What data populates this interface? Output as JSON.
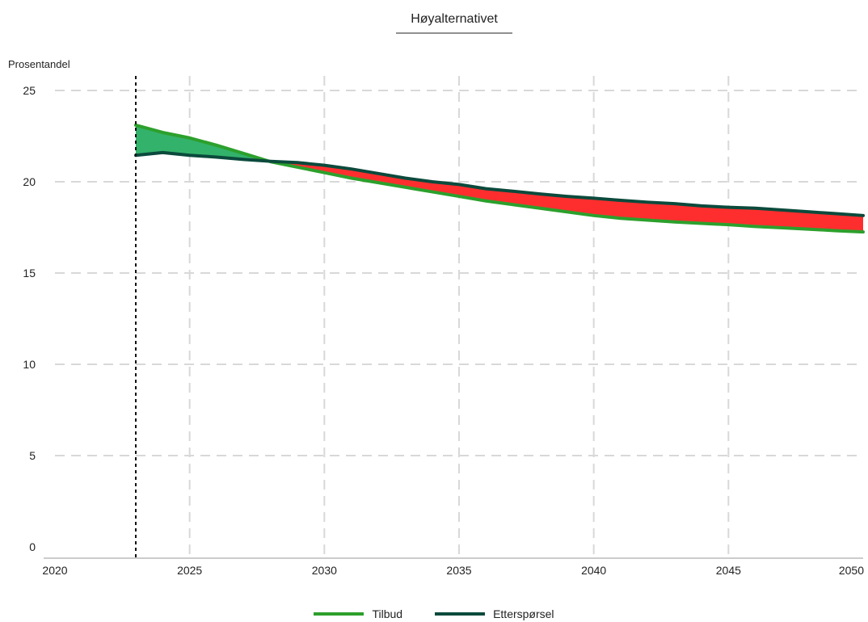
{
  "chart_data": {
    "type": "area",
    "title": "Høyalternativet",
    "ylabel": "Prosentandel",
    "xlabel": "",
    "xlim": [
      2020,
      2050
    ],
    "ylim": [
      0,
      25
    ],
    "x_ticks": [
      2020,
      2025,
      2030,
      2035,
      2040,
      2045,
      2050
    ],
    "y_ticks": [
      0,
      5,
      10,
      15,
      20,
      25
    ],
    "grid": true,
    "vertical_marker_x": 2023,
    "x": [
      2023,
      2024,
      2025,
      2026,
      2027,
      2028,
      2029,
      2030,
      2031,
      2032,
      2033,
      2034,
      2035,
      2036,
      2037,
      2038,
      2039,
      2040,
      2041,
      2042,
      2043,
      2044,
      2045,
      2046,
      2047,
      2048,
      2049,
      2050
    ],
    "series": [
      {
        "name": "Tilbud",
        "color": "#2ca02c",
        "values": [
          23.1,
          22.7,
          22.4,
          22.0,
          21.55,
          21.1,
          20.8,
          20.5,
          20.2,
          19.95,
          19.7,
          19.45,
          19.2,
          18.95,
          18.75,
          18.55,
          18.35,
          18.15,
          18.0,
          17.9,
          17.8,
          17.72,
          17.65,
          17.55,
          17.48,
          17.4,
          17.32,
          17.25
        ]
      },
      {
        "name": "Etterspørsel",
        "color": "#0b4a3c",
        "values": [
          21.45,
          21.6,
          21.45,
          21.35,
          21.22,
          21.12,
          21.05,
          20.9,
          20.7,
          20.45,
          20.2,
          20.0,
          19.85,
          19.62,
          19.48,
          19.33,
          19.2,
          19.1,
          18.98,
          18.88,
          18.8,
          18.68,
          18.6,
          18.55,
          18.45,
          18.35,
          18.25,
          18.15
        ]
      }
    ],
    "fill_colors": {
      "surplus": "#33b26b",
      "deficit": "#ff2e2e"
    },
    "legend_position": "bottom-center"
  }
}
